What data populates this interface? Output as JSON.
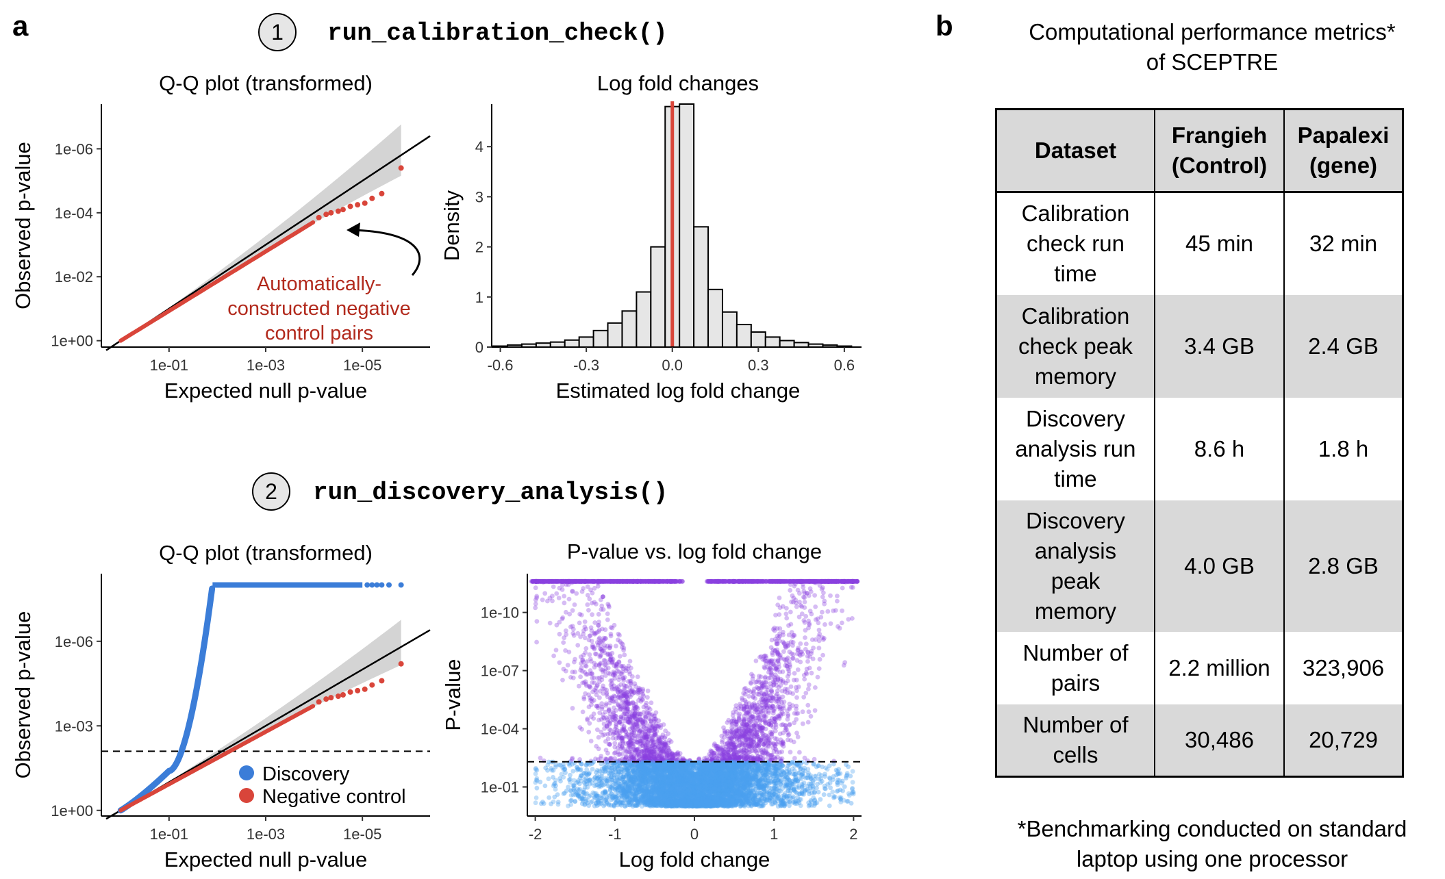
{
  "panel_a": {
    "letter": "a",
    "step1": {
      "number": "1",
      "function": "run_calibration_check()"
    },
    "step2": {
      "number": "2",
      "function": "run_discovery_analysis()"
    }
  },
  "panel_b": {
    "letter": "b",
    "title_line1": "Computational performance metrics*",
    "title_line2": "of SCEPTRE",
    "footnote_line1": "*Benchmarking conducted on standard",
    "footnote_line2": "laptop using one processor"
  },
  "table": {
    "headers": [
      [
        "Dataset"
      ],
      [
        "Frangieh",
        "(Control)"
      ],
      [
        "Papalexi",
        "(gene)"
      ]
    ],
    "rows": [
      {
        "metric": [
          "Calibration",
          "check run",
          "time"
        ],
        "frangieh": "45 min",
        "papalexi": "32 min"
      },
      {
        "metric": [
          "Calibration",
          "check peak",
          "memory"
        ],
        "frangieh": "3.4 GB",
        "papalexi": "2.4 GB"
      },
      {
        "metric": [
          "Discovery",
          "analysis run",
          "time"
        ],
        "frangieh": "8.6 h",
        "papalexi": "1.8 h"
      },
      {
        "metric": [
          "Discovery",
          "analysis",
          "peak",
          "memory"
        ],
        "frangieh": "4.0 GB",
        "papalexi": "2.8 GB"
      },
      {
        "metric": [
          "Number of",
          "pairs"
        ],
        "frangieh": "2.2 million",
        "papalexi": "323,906"
      },
      {
        "metric": [
          "Number of",
          "cells"
        ],
        "frangieh": "30,486",
        "papalexi": "20,729"
      }
    ]
  },
  "colors": {
    "discovery": "#3b7dd8",
    "negative_control": "#d9453a",
    "annotation": "#b22a1d",
    "volcano_significant": "#8a3fe0",
    "volcano_nonsignificant": "#4aa0ef",
    "confidence_band": "#d4d4d4",
    "histogram_fill": "#e6e6e6",
    "table_shade": "#d9d9d9"
  },
  "chart_data": [
    {
      "id": "qq1",
      "type": "scatter",
      "title": "Q-Q plot (transformed)",
      "xlabel": "Expected null p-value",
      "ylabel": "Observed p-value",
      "x_ticks": [
        "1e-01",
        "1e-03",
        "1e-05"
      ],
      "y_ticks": [
        "1e+00",
        "1e-02",
        "1e-04",
        "1e-06"
      ],
      "x_scale": "-log10",
      "y_scale": "-log10",
      "xlim_neglog10": [
        -0.4,
        6.4
      ],
      "ylim_neglog10": [
        -0.2,
        7.4
      ],
      "series": [
        {
          "name": "Negative control",
          "x_max_neglog10": 5.8,
          "y_max_neglog10": 5.4
        }
      ],
      "reference_line": "y = x",
      "confidence_band": true,
      "annotation": [
        "Automatically-",
        "constructed negative",
        "control pairs"
      ]
    },
    {
      "id": "hist",
      "type": "bar",
      "title": "Log fold changes",
      "xlabel": "Estimated log fold change",
      "ylabel": "Density",
      "x_ticks": [
        "-0.6",
        "-0.3",
        "0.0",
        "0.3",
        "0.6"
      ],
      "y_ticks": [
        "0",
        "1",
        "2",
        "3",
        "4"
      ],
      "xlim": [
        -0.63,
        0.66
      ],
      "ylim": [
        0,
        4.85
      ],
      "bin_width": 0.05,
      "bin_start": -0.625,
      "values": [
        0.02,
        0.04,
        0.06,
        0.08,
        0.1,
        0.14,
        0.2,
        0.33,
        0.48,
        0.72,
        1.1,
        2.0,
        4.8,
        4.85,
        2.4,
        1.15,
        0.7,
        0.45,
        0.3,
        0.2,
        0.13,
        0.09,
        0.06,
        0.04,
        0.02
      ],
      "vline": 0.0
    },
    {
      "id": "qq2",
      "type": "scatter",
      "title": "Q-Q plot (transformed)",
      "xlabel": "Expected null p-value",
      "ylabel": "Observed p-value",
      "x_ticks": [
        "1e-01",
        "1e-03",
        "1e-05"
      ],
      "y_ticks": [
        "1e+00",
        "1e-03",
        "1e-06"
      ],
      "x_scale": "-log10",
      "y_scale": "-log10",
      "xlim_neglog10": [
        -0.4,
        6.4
      ],
      "ylim_neglog10": [
        -0.2,
        8.4
      ],
      "series": [
        {
          "name": "Discovery",
          "plateau_neglog10": 8.0
        },
        {
          "name": "Negative control",
          "x_max_neglog10": 5.8,
          "y_max_neglog10": 5.2
        }
      ],
      "threshold_neglog10": 2.1,
      "legend": "bottom-right"
    },
    {
      "id": "volcano",
      "type": "scatter",
      "title": "P-value vs. log fold change",
      "xlabel": "Log fold change",
      "ylabel": "P-value",
      "x_ticks": [
        "-2",
        "-1",
        "0",
        "1",
        "2"
      ],
      "y_ticks": [
        "1e-01",
        "1e-04",
        "1e-07",
        "1e-10"
      ],
      "xlim": [
        -2.1,
        2.1
      ],
      "ylim_neglog10": [
        -0.5,
        12.0
      ],
      "threshold_neglog10": 2.3
    }
  ]
}
